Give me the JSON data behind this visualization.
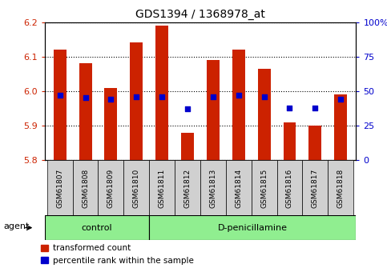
{
  "title": "GDS1394 / 1368978_at",
  "samples": [
    "GSM61807",
    "GSM61808",
    "GSM61809",
    "GSM61810",
    "GSM61811",
    "GSM61812",
    "GSM61813",
    "GSM61814",
    "GSM61815",
    "GSM61816",
    "GSM61817",
    "GSM61818"
  ],
  "red_values": [
    6.12,
    6.08,
    6.01,
    6.14,
    6.19,
    5.88,
    6.09,
    6.12,
    6.065,
    5.91,
    5.9,
    5.99
  ],
  "blue_values": [
    47,
    45,
    44,
    46,
    46,
    37,
    46,
    47,
    46,
    38,
    38,
    44
  ],
  "ymin": 5.8,
  "ymax": 6.2,
  "yticks": [
    5.8,
    5.9,
    6.0,
    6.1,
    6.2
  ],
  "y2ticks": [
    0,
    25,
    50,
    75,
    100
  ],
  "y2labels": [
    "0",
    "25",
    "50",
    "75",
    "100%"
  ],
  "bar_width": 0.5,
  "bar_color": "#CC2200",
  "dot_color": "#0000CC",
  "control_samples": 4,
  "control_label": "control",
  "treatment_label": "D-penicillamine",
  "agent_label": "agent",
  "legend_red": "transformed count",
  "legend_blue": "percentile rank within the sample",
  "control_bg": "#90EE90",
  "treatment_bg": "#90EE90",
  "sample_bg": "#d0d0d0",
  "plot_bg": "#ffffff",
  "ylabel_color": "#CC2200",
  "y2label_color": "#0000CC"
}
